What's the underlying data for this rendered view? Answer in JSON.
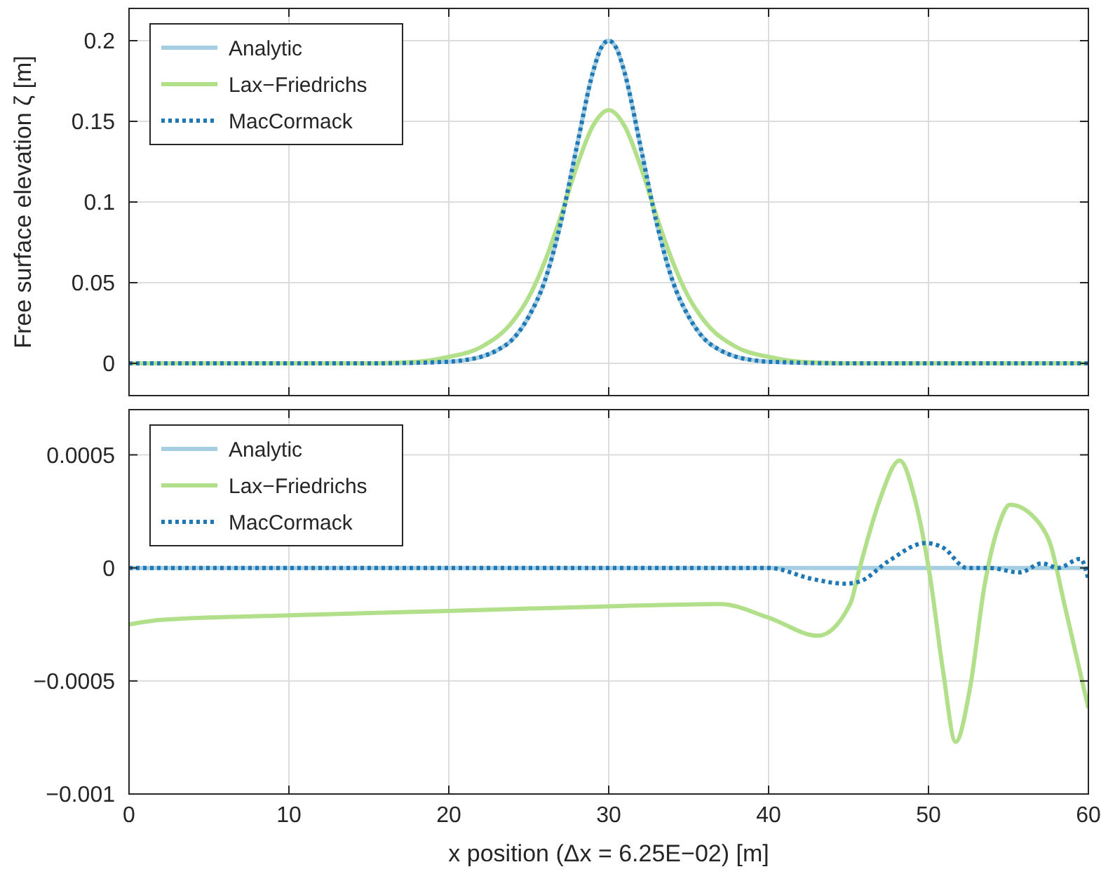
{
  "chart_data": [
    {
      "type": "line",
      "ylabel": "Free surface elevation ζ [m]",
      "xlim": [
        0,
        60
      ],
      "xticks": [
        0,
        10,
        20,
        30,
        40,
        50,
        60
      ],
      "ylim": [
        -0.02,
        0.22
      ],
      "yticks": [
        0,
        0.05,
        0.1,
        0.15,
        0.2
      ],
      "grid": true,
      "legend": "top left",
      "tick_labels": "y",
      "marker": "none",
      "series": [
        {
          "name": "Analytic",
          "color": "#a6cee3",
          "line_style": "solid",
          "x": [
            0,
            15,
            20,
            21,
            22,
            23,
            24,
            25,
            26,
            27,
            28,
            29,
            29.5,
            30,
            30.5,
            31,
            32,
            33,
            34,
            35,
            36,
            37,
            38,
            39,
            40,
            45,
            60
          ],
          "values": [
            0,
            0,
            0.001,
            0.002,
            0.004,
            0.008,
            0.015,
            0.029,
            0.051,
            0.087,
            0.134,
            0.18,
            0.195,
            0.2,
            0.195,
            0.18,
            0.134,
            0.087,
            0.051,
            0.029,
            0.015,
            0.008,
            0.004,
            0.002,
            0.001,
            0,
            0
          ]
        },
        {
          "name": "Lax−Friedrichs",
          "color": "#b2df8a",
          "line_style": "solid",
          "x": [
            0,
            15,
            18,
            20,
            22,
            24,
            25,
            26,
            27,
            28,
            29,
            30,
            31,
            32,
            33,
            34,
            35,
            36,
            38,
            40,
            42,
            45,
            60
          ],
          "values": [
            0,
            0,
            0.001,
            0.004,
            0.01,
            0.026,
            0.041,
            0.063,
            0.091,
            0.122,
            0.147,
            0.157,
            0.147,
            0.122,
            0.091,
            0.063,
            0.041,
            0.026,
            0.01,
            0.004,
            0.001,
            0,
            0
          ]
        },
        {
          "name": "MacCormack",
          "color": "#1f78b4",
          "line_style": "dotted",
          "x": [
            0,
            15,
            20,
            21,
            22,
            23,
            24,
            25,
            26,
            27,
            28,
            29,
            29.5,
            30,
            30.5,
            31,
            32,
            33,
            34,
            35,
            36,
            37,
            38,
            39,
            40,
            45,
            60
          ],
          "values": [
            0,
            0,
            0.001,
            0.002,
            0.004,
            0.008,
            0.015,
            0.029,
            0.051,
            0.087,
            0.134,
            0.18,
            0.195,
            0.2,
            0.195,
            0.18,
            0.134,
            0.087,
            0.051,
            0.029,
            0.015,
            0.008,
            0.004,
            0.002,
            0.001,
            0,
            0
          ]
        }
      ]
    },
    {
      "type": "line",
      "xlabel": "x position (Δx = 6.25E−02) [m]",
      "xlim": [
        0,
        60
      ],
      "xticks": [
        0,
        10,
        20,
        30,
        40,
        50,
        60
      ],
      "ylim": [
        -0.001,
        0.0007
      ],
      "yticks": [
        -0.001,
        -0.0005,
        0,
        0.0005
      ],
      "grid": true,
      "legend": "top left",
      "marker": "none",
      "series": [
        {
          "name": "Analytic",
          "color": "#a6cee3",
          "line_style": "solid",
          "x": [
            0,
            60
          ],
          "values": [
            0,
            0
          ]
        },
        {
          "name": "Lax−Friedrichs",
          "color": "#b2df8a",
          "line_style": "solid",
          "x": [
            0,
            2,
            10,
            20,
            30,
            37,
            40,
            43.1,
            45.1,
            45.7,
            46.9,
            48.2,
            49.2,
            50.1,
            50.9,
            51.7,
            52.6,
            53.5,
            54.4,
            55.1,
            56.9,
            57.6,
            58.5,
            60
          ],
          "values": [
            -0.00025,
            -0.00023,
            -0.00021,
            -0.00019,
            -0.00017,
            -0.00016,
            -0.00022,
            -0.0003,
            -0.00016,
            0,
            0.00029,
            0.000475,
            0.00029,
            -4e-05,
            -0.00045,
            -0.00077,
            -0.00053,
            -8e-05,
            0.00019,
            0.00028,
            0.0002,
            0.00011,
            -0.00016,
            -0.00062
          ]
        },
        {
          "name": "MacCormack",
          "color": "#1f78b4",
          "line_style": "dotted",
          "x": [
            0,
            38,
            40,
            42.8,
            44.8,
            45.7,
            47.5,
            49.8,
            50.9,
            52.4,
            53.8,
            55.7,
            57.1,
            58.1,
            59.5,
            60
          ],
          "values": [
            0,
            0,
            0,
            -5e-05,
            -7e-05,
            -6e-05,
            3e-05,
            0.00011,
            9e-05,
            0,
            0,
            -2e-05,
            2e-05,
            0,
            4e-05,
            -5e-05
          ]
        }
      ]
    }
  ]
}
